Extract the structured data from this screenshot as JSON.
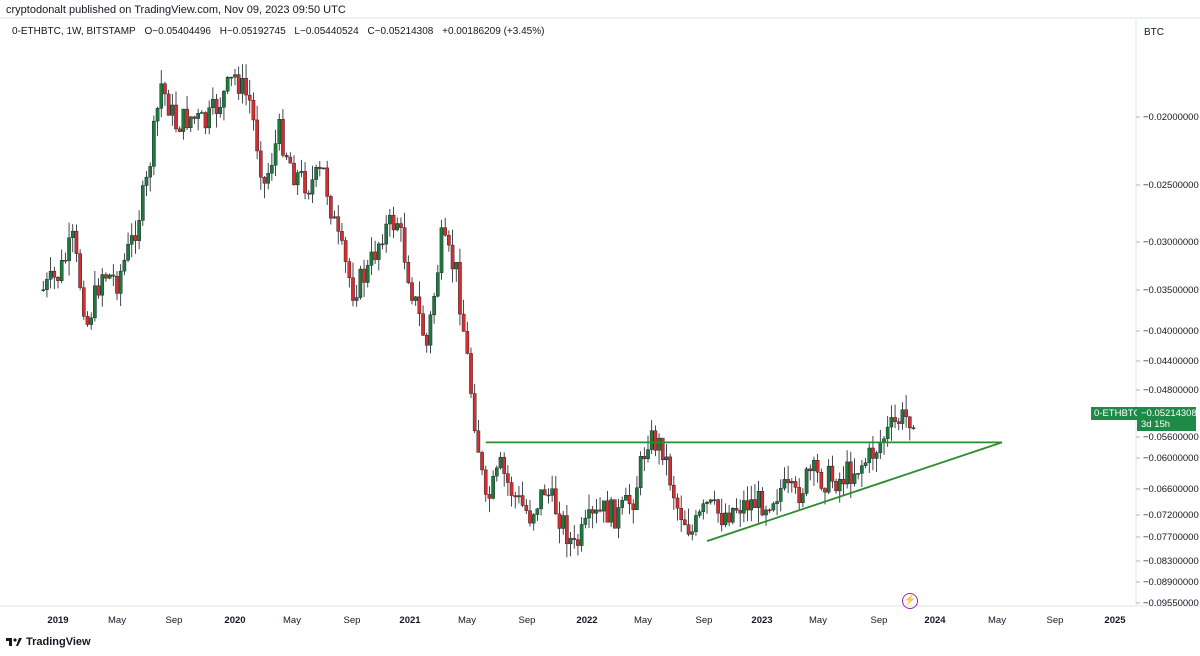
{
  "header": {
    "published_line": "cryptodonalt published on TradingView.com, Nov 09, 2023 09:50 UTC",
    "symbol": "0-ETHBTC, 1W, BITSTAMP",
    "open": "O−0.05404496",
    "high": "H−0.05192745",
    "low": "L−0.05440524",
    "close": "C−0.05214308",
    "change": "+0.00186209 (+3.45%)"
  },
  "axis_currency": "BTC",
  "price_label": {
    "symbol": "0-ETHBTC",
    "value": "−0.05214308",
    "countdown": "3d 15h"
  },
  "footer": {
    "brand": "TradingView"
  },
  "colors": {
    "up": "#1e7a3c",
    "down": "#d32f2f",
    "trendline": "#2e8b2e",
    "badge": "#1e8a47",
    "event_icon": "#9c27b0"
  },
  "event_icon": "lightning-icon",
  "chart_data": {
    "type": "candlestick",
    "y_axis": {
      "side": "right",
      "scale": "logarithmic",
      "ticks": [
        "−0.02000000",
        "−0.02500000",
        "−0.03000000",
        "−0.03500000",
        "−0.04000000",
        "−0.04400000",
        "−0.04800000",
        "−0.05600000",
        "−0.06000000",
        "−0.06600000",
        "−0.07200000",
        "−0.07700000",
        "−0.08300000",
        "−0.08900000",
        "−0.09550000"
      ]
    },
    "x_axis": {
      "ticks": [
        "2019",
        "May",
        "Sep",
        "2020",
        "May",
        "Sep",
        "2021",
        "May",
        "Sep",
        "2022",
        "May",
        "Sep",
        "2023",
        "May",
        "Sep",
        "2024",
        "May",
        "Sep",
        "2025"
      ],
      "year_ticks": [
        "2019",
        "2020",
        "2021",
        "2022",
        "2023",
        "2024",
        "2025"
      ]
    },
    "series": [
      {
        "values_approx": [
          [
            "2018-12",
            -0.035
          ],
          [
            "2019-01",
            -0.0335
          ],
          [
            "2019-02",
            -0.03
          ],
          [
            "2019-03",
            -0.039
          ],
          [
            "2019-04",
            -0.033
          ],
          [
            "2019-05",
            -0.034
          ],
          [
            "2019-06",
            -0.03
          ],
          [
            "2019-07",
            -0.025
          ],
          [
            "2019-08",
            -0.018
          ],
          [
            "2019-09",
            -0.0205
          ],
          [
            "2019-10",
            -0.02
          ],
          [
            "2019-11",
            -0.0205
          ],
          [
            "2019-12",
            -0.019
          ],
          [
            "2020-01",
            -0.0175
          ],
          [
            "2020-02",
            -0.019
          ],
          [
            "2020-03",
            -0.025
          ],
          [
            "2020-04",
            -0.021
          ],
          [
            "2020-05",
            -0.024
          ],
          [
            "2020-06",
            -0.025
          ],
          [
            "2020-07",
            -0.024
          ],
          [
            "2020-08",
            -0.03
          ],
          [
            "2020-09",
            -0.035
          ],
          [
            "2020-10",
            -0.033
          ],
          [
            "2020-11",
            -0.029
          ],
          [
            "2020-12",
            -0.028
          ],
          [
            "2021-01",
            -0.035
          ],
          [
            "2021-02",
            -0.042
          ],
          [
            "2021-03",
            -0.03
          ],
          [
            "2021-04",
            -0.033
          ],
          [
            "2021-05",
            -0.048
          ],
          [
            "2021-06",
            -0.07
          ],
          [
            "2021-07",
            -0.062
          ],
          [
            "2021-08",
            -0.068
          ],
          [
            "2021-09",
            -0.072
          ],
          [
            "2021-10",
            -0.066
          ],
          [
            "2021-11",
            -0.072
          ],
          [
            "2021-12",
            -0.08
          ],
          [
            "2022-01",
            -0.074
          ],
          [
            "2022-02",
            -0.071
          ],
          [
            "2022-03",
            -0.072
          ],
          [
            "2022-04",
            -0.068
          ],
          [
            "2022-05",
            -0.056
          ],
          [
            "2022-06",
            -0.058
          ],
          [
            "2022-07",
            -0.07
          ],
          [
            "2022-08",
            -0.076
          ],
          [
            "2022-09",
            -0.07
          ],
          [
            "2022-10",
            -0.072
          ],
          [
            "2022-11",
            -0.07
          ],
          [
            "2022-12",
            -0.069
          ],
          [
            "2023-01",
            -0.069
          ],
          [
            "2023-02",
            -0.066
          ],
          [
            "2023-03",
            -0.068
          ],
          [
            "2023-04",
            -0.063
          ],
          [
            "2023-05",
            -0.064
          ],
          [
            "2023-06",
            -0.064
          ],
          [
            "2023-07",
            -0.062
          ],
          [
            "2023-08",
            -0.06
          ],
          [
            "2023-09",
            -0.056
          ],
          [
            "2023-10",
            -0.053
          ],
          [
            "2023-11",
            -0.0521
          ]
        ]
      }
    ],
    "annotations": [
      {
        "type": "horizontal_line",
        "value": -0.057,
        "from": "2021-06",
        "to": "2024-05"
      },
      {
        "type": "trendline",
        "from": [
          "2022-09",
          -0.078
        ],
        "to": [
          "2024-05",
          -0.057
        ]
      }
    ],
    "grid": false,
    "legend": "top-left"
  }
}
